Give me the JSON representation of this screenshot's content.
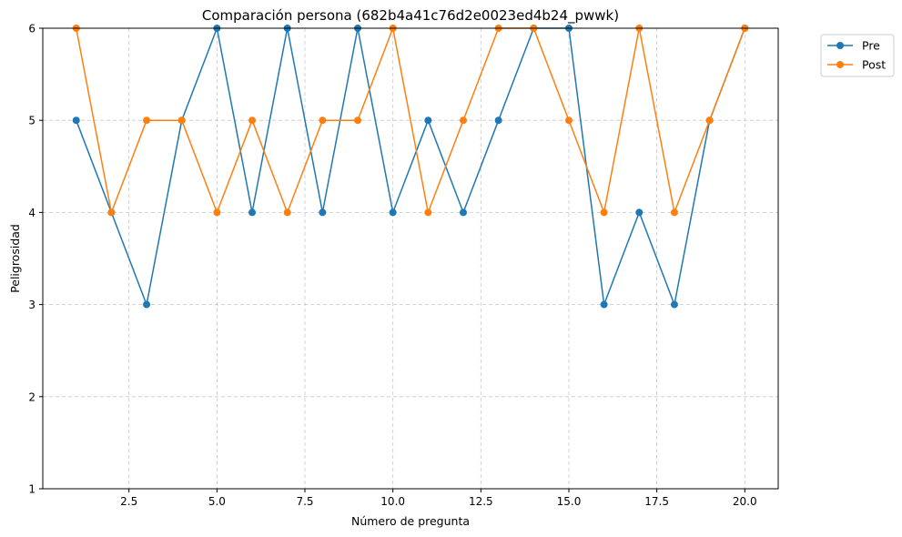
{
  "chart_data": {
    "type": "line",
    "title": "Comparación persona (682b4a41c76d2e0023ed4b24_pwwk)",
    "xlabel": "Número de pregunta",
    "ylabel": "Peligrosidad",
    "xlim": [
      0.05,
      20.95
    ],
    "ylim": [
      1,
      6
    ],
    "xticks": [
      2.5,
      5.0,
      7.5,
      10.0,
      12.5,
      15.0,
      17.5,
      20.0
    ],
    "xtick_labels": [
      "2.5",
      "5.0",
      "7.5",
      "10.0",
      "12.5",
      "15.0",
      "17.5",
      "20.0"
    ],
    "yticks": [
      1,
      2,
      3,
      4,
      5,
      6
    ],
    "ytick_labels": [
      "1",
      "2",
      "3",
      "4",
      "5",
      "6"
    ],
    "grid": true,
    "legend_position": "outside-top-right",
    "x": [
      1,
      2,
      3,
      4,
      5,
      6,
      7,
      8,
      9,
      10,
      11,
      12,
      13,
      14,
      15,
      16,
      17,
      18,
      19,
      20
    ],
    "series": [
      {
        "name": "Pre",
        "color": "#1f77b4",
        "values": [
          5,
          4,
          3,
          5,
          6,
          4,
          6,
          4,
          6,
          4,
          5,
          4,
          5,
          6,
          6,
          3,
          4,
          3,
          5,
          6
        ]
      },
      {
        "name": "Post",
        "color": "#ff7f0e",
        "values": [
          6,
          4,
          5,
          5,
          4,
          5,
          4,
          5,
          5,
          6,
          4,
          5,
          6,
          6,
          5,
          4,
          6,
          4,
          5,
          6
        ]
      }
    ]
  }
}
